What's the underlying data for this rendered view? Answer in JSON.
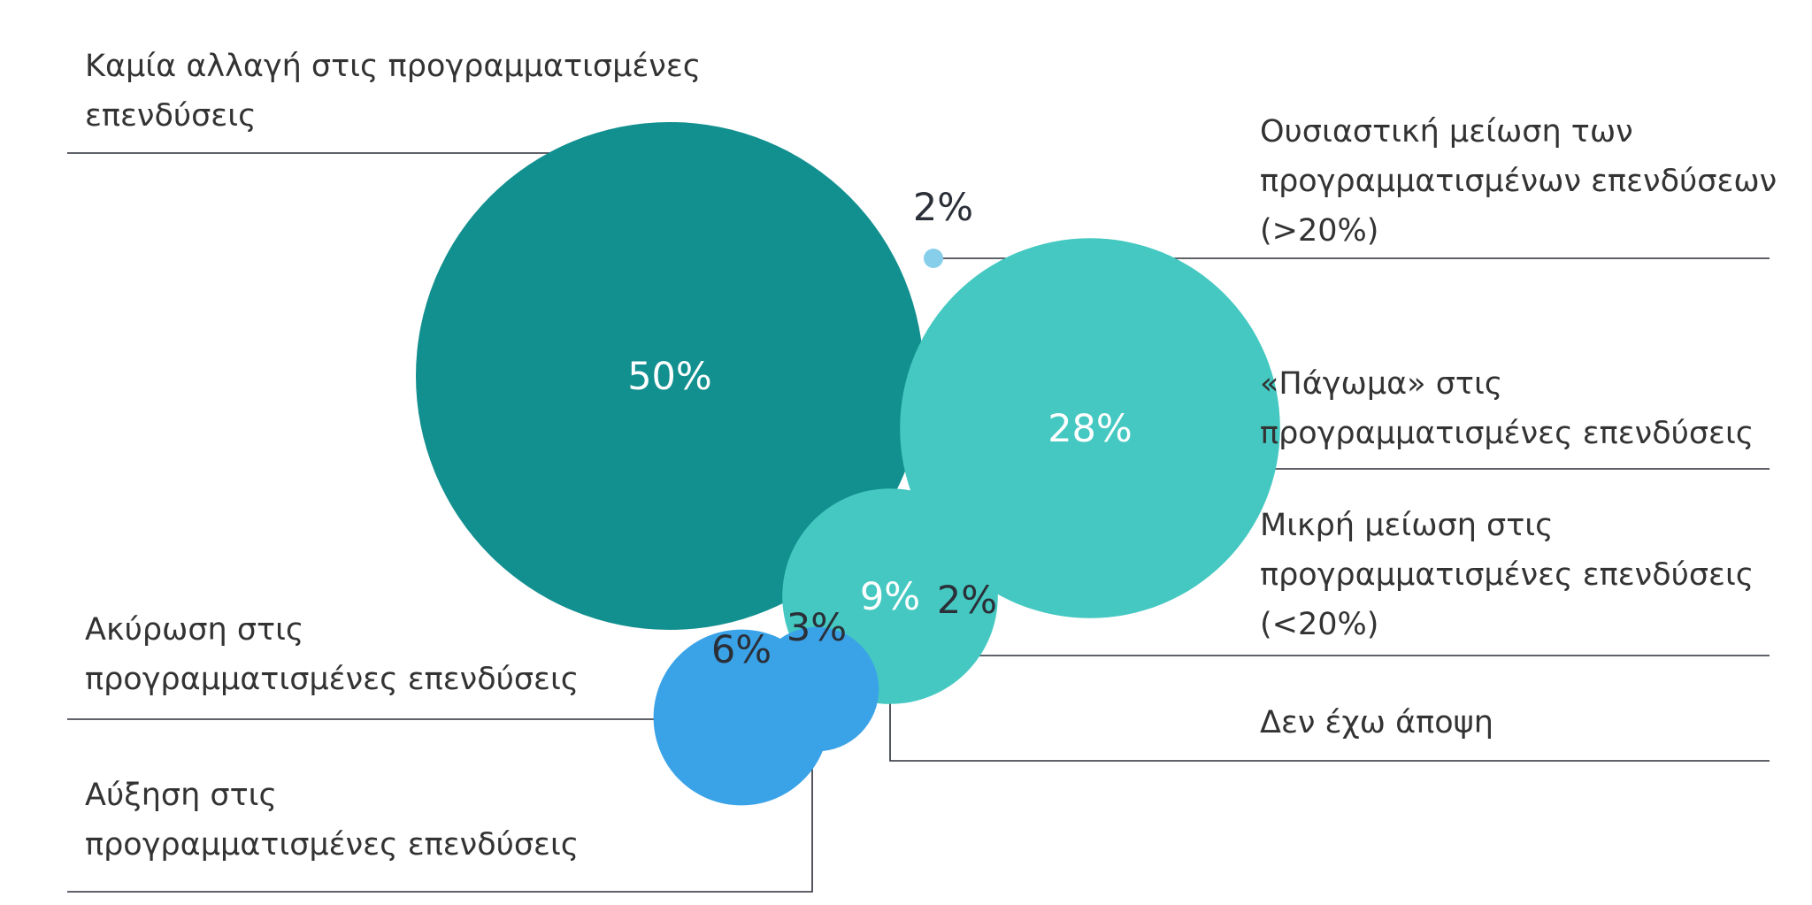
{
  "chart_data": {
    "type": "bubble",
    "series": [
      {
        "key": "no_change",
        "label_lines": [
          "Καμία αλλαγή στις προγραμματισμένες",
          "επενδύσεις"
        ],
        "value": 50,
        "value_label": "50%",
        "color": "#128f8f"
      },
      {
        "key": "substantial_decrease",
        "label_lines": [
          "Ουσιαστική μείωση των",
          "προγραμματισμένων επενδύσεων",
          "(>20%)"
        ],
        "value": 2,
        "value_label": "2%",
        "color": "#87ceeb"
      },
      {
        "key": "freeze",
        "label_lines": [
          "«Πάγωμα» στις",
          "προγραμματισμένες επενδύσεις"
        ],
        "value": 28,
        "value_label": "28%",
        "color": "#44c8c1"
      },
      {
        "key": "small_decrease",
        "label_lines": [
          "Μικρή μείωση στις",
          "προγραμματισμένες επενδύσεις",
          "(<20%)"
        ],
        "value": 2,
        "value_label": "2%",
        "color": "#87ceeb"
      },
      {
        "key": "no_opinion",
        "label_lines": [
          "Δεν έχω άποψη"
        ],
        "value": 9,
        "value_label": "9%",
        "color": "#44c8c1"
      },
      {
        "key": "cancellation",
        "label_lines": [
          "Ακύρωση στις",
          "προγραμματισμένες επενδύσεις"
        ],
        "value": 6,
        "value_label": "6%",
        "color": "#3aa3e8"
      },
      {
        "key": "increase",
        "label_lines": [
          "Αύξηση στις",
          "προγραμματισμένες επενδύσεις"
        ],
        "value": 3,
        "value_label": "3%",
        "color": "#3aa3e8"
      }
    ],
    "legend": "none",
    "grid": false
  }
}
